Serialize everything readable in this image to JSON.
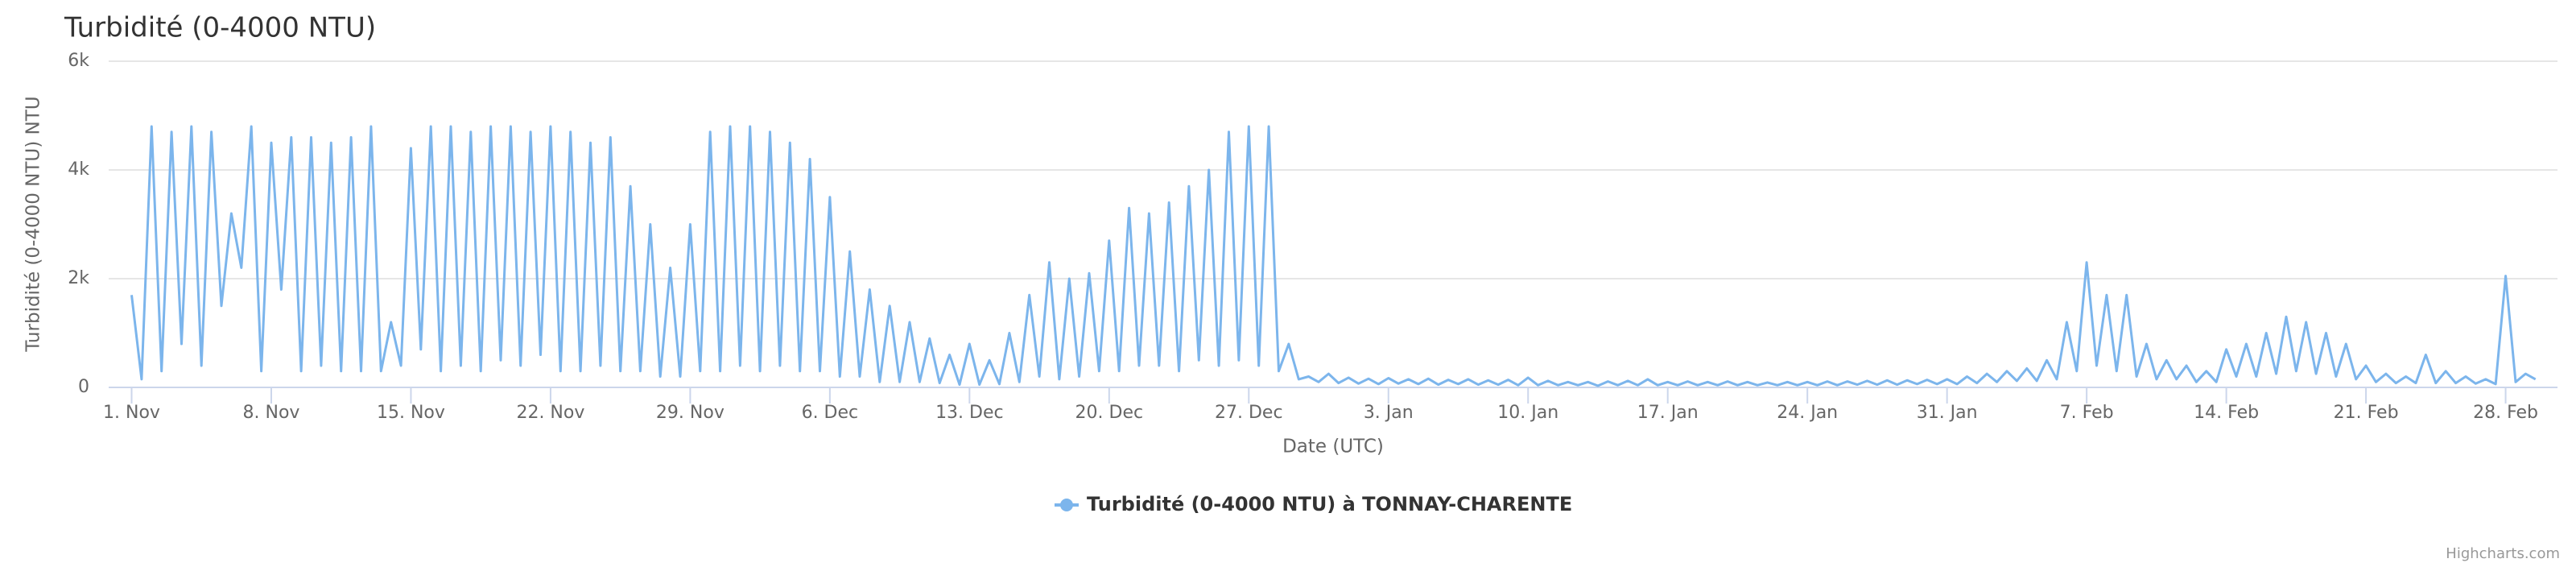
{
  "chart_data": {
    "type": "line",
    "title": "Turbidité (0-4000 NTU)",
    "y_label": "Turbidité (0-4000 NTU) NTU",
    "x_label": "Date (UTC)",
    "credits": "Highcharts.com",
    "grid": true,
    "legend": "bottom",
    "xlim": [
      -1.15,
      121.6
    ],
    "xticks": [
      {
        "value": 0,
        "label": "1. Nov"
      },
      {
        "value": 7,
        "label": "8. Nov"
      },
      {
        "value": 14,
        "label": "15. Nov"
      },
      {
        "value": 21,
        "label": "22. Nov"
      },
      {
        "value": 28,
        "label": "29. Nov"
      },
      {
        "value": 35,
        "label": "6. Dec"
      },
      {
        "value": 42,
        "label": "13. Dec"
      },
      {
        "value": 49,
        "label": "20. Dec"
      },
      {
        "value": 56,
        "label": "27. Dec"
      },
      {
        "value": 63,
        "label": "3. Jan"
      },
      {
        "value": 70,
        "label": "10. Jan"
      },
      {
        "value": 77,
        "label": "17. Jan"
      },
      {
        "value": 84,
        "label": "24. Jan"
      },
      {
        "value": 91,
        "label": "31. Jan"
      },
      {
        "value": 98,
        "label": "7. Feb"
      },
      {
        "value": 105,
        "label": "14. Feb"
      },
      {
        "value": 112,
        "label": "21. Feb"
      },
      {
        "value": 119,
        "label": "28. Feb"
      }
    ],
    "ylim": [
      0,
      6000
    ],
    "yticks": [
      0,
      {
        "value": 2000,
        "label": "2k"
      },
      {
        "value": 4000,
        "label": "4k"
      },
      {
        "value": 6000,
        "label": "6k"
      }
    ],
    "x": [
      0,
      0.5,
      1,
      1.5,
      2,
      2.5,
      3,
      3.5,
      4,
      4.5,
      5,
      5.5,
      6,
      6.5,
      7,
      7.5,
      8,
      8.5,
      9,
      9.5,
      10,
      10.5,
      11,
      11.5,
      12,
      12.5,
      13,
      13.5,
      14,
      14.5,
      15,
      15.5,
      16,
      16.5,
      17,
      17.5,
      18,
      18.5,
      19,
      19.5,
      20,
      20.5,
      21,
      21.5,
      22,
      22.5,
      23,
      23.5,
      24,
      24.5,
      25,
      25.5,
      26,
      26.5,
      27,
      27.5,
      28,
      28.5,
      29,
      29.5,
      30,
      30.5,
      31,
      31.5,
      32,
      32.5,
      33,
      33.5,
      34,
      34.5,
      35,
      35.5,
      36,
      36.5,
      37,
      37.5,
      38,
      38.5,
      39,
      39.5,
      40,
      40.5,
      41,
      41.5,
      42,
      42.5,
      43,
      43.5,
      44,
      44.5,
      45,
      45.5,
      46,
      46.5,
      47,
      47.5,
      48,
      48.5,
      49,
      49.5,
      50,
      50.5,
      51,
      51.5,
      52,
      52.5,
      53,
      53.5,
      54,
      54.5,
      55,
      55.5,
      56,
      56.5,
      57,
      57.5,
      58,
      58.5,
      59,
      59.5,
      60,
      60.5,
      61,
      61.5,
      62,
      62.5,
      63,
      63.5,
      64,
      64.5,
      65,
      65.5,
      66,
      66.5,
      67,
      67.5,
      68,
      68.5,
      69,
      69.5,
      70,
      70.5,
      71,
      71.5,
      72,
      72.5,
      73,
      73.5,
      74,
      74.5,
      75,
      75.5,
      76,
      76.5,
      77,
      77.5,
      78,
      78.5,
      79,
      79.5,
      80,
      80.5,
      81,
      81.5,
      82,
      82.5,
      83,
      83.5,
      84,
      84.5,
      85,
      85.5,
      86,
      86.5,
      87,
      87.5,
      88,
      88.5,
      89,
      89.5,
      90,
      90.5,
      91,
      91.5,
      92,
      92.5,
      93,
      93.5,
      94,
      94.5,
      95,
      95.5,
      96,
      96.5,
      97,
      97.5,
      98,
      98.5,
      99,
      99.5,
      100,
      100.5,
      101,
      101.5,
      102,
      102.5,
      103,
      103.5,
      104,
      104.5,
      105,
      105.5,
      106,
      106.5,
      107,
      107.5,
      108,
      108.5,
      109,
      109.5,
      110,
      110.5,
      111,
      111.5,
      112,
      112.5,
      113,
      113.5,
      114,
      114.5,
      115,
      115.5,
      116,
      116.5,
      117,
      117.5,
      118,
      118.5,
      119,
      119.5,
      120,
      120.5
    ],
    "series": [
      {
        "name": "Turbidité (0-4000 NTU) à TONNAY-CHARENTE",
        "color": "#7cb5ec",
        "values": [
          1700,
          150,
          4800,
          300,
          4700,
          800,
          4800,
          400,
          4700,
          1500,
          3200,
          2200,
          4800,
          300,
          4500,
          1800,
          4600,
          300,
          4600,
          400,
          4500,
          300,
          4600,
          300,
          4800,
          300,
          1200,
          400,
          4400,
          700,
          4800,
          300,
          4800,
          400,
          4700,
          300,
          4800,
          500,
          4800,
          400,
          4700,
          600,
          4800,
          300,
          4700,
          300,
          4500,
          400,
          4600,
          300,
          3700,
          300,
          3000,
          200,
          2200,
          200,
          3000,
          300,
          4700,
          300,
          4800,
          400,
          4800,
          300,
          4700,
          400,
          4500,
          300,
          4200,
          300,
          3500,
          200,
          2500,
          200,
          1800,
          100,
          1500,
          100,
          1200,
          100,
          900,
          80,
          600,
          50,
          800,
          50,
          500,
          60,
          1000,
          100,
          1700,
          200,
          2300,
          150,
          2000,
          200,
          2100,
          300,
          2700,
          300,
          3300,
          400,
          3200,
          400,
          3400,
          300,
          3700,
          500,
          4000,
          400,
          4700,
          500,
          4800,
          400,
          4800,
          300,
          800,
          150,
          200,
          100,
          250,
          80,
          180,
          70,
          160,
          60,
          170,
          70,
          150,
          60,
          160,
          50,
          140,
          60,
          150,
          50,
          130,
          50,
          140,
          40,
          180,
          40,
          120,
          40,
          100,
          40,
          100,
          30,
          110,
          40,
          120,
          40,
          150,
          40,
          100,
          40,
          110,
          40,
          100,
          40,
          110,
          40,
          100,
          40,
          90,
          40,
          100,
          40,
          100,
          40,
          110,
          40,
          110,
          50,
          120,
          50,
          130,
          50,
          130,
          60,
          140,
          60,
          150,
          60,
          200,
          80,
          250,
          100,
          300,
          120,
          350,
          120,
          500,
          150,
          1200,
          300,
          2300,
          400,
          1700,
          300,
          1700,
          200,
          800,
          150,
          500,
          150,
          400,
          100,
          300,
          100,
          700,
          200,
          800,
          200,
          1000,
          250,
          1300,
          300,
          1200,
          250,
          1000,
          200,
          800,
          150,
          400,
          100,
          250,
          80,
          200,
          80,
          600,
          80,
          300,
          80,
          200,
          70,
          150,
          60,
          2050,
          100,
          250,
          150
        ]
      }
    ]
  }
}
